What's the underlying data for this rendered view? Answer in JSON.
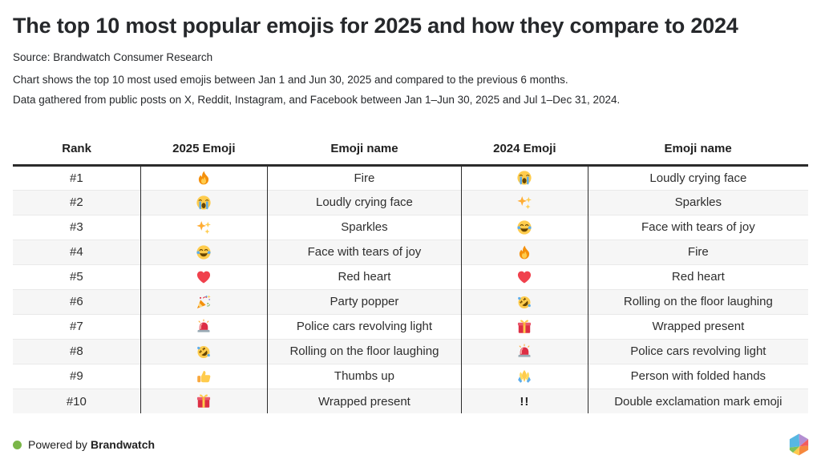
{
  "header": {
    "title": "The top 10 most popular emojis for 2025 and how they compare to 2024",
    "source": "Source: Brandwatch Consumer Research",
    "description_line1": "Chart shows the top 10 most used emojis between Jan 1 and Jun 30, 2025 and compared to the previous 6 months.",
    "description_line2": "Data gathered from public posts on X, Reddit, Instagram, and Facebook between Jan 1–Jun 30, 2025 and Jul 1–Dec 31, 2024."
  },
  "chart_data": {
    "type": "table",
    "title": "The top 10 most popular emojis for 2025 and how they compare to 2024",
    "columns": [
      "Rank",
      "2025 Emoji",
      "Emoji name",
      "2024 Emoji",
      "Emoji name"
    ],
    "rows": [
      {
        "rank": "#1",
        "emoji_2025": "🔥",
        "icon_2025": "fire",
        "name_2025": "Fire",
        "emoji_2024": "😭",
        "icon_2024": "loudly-crying-face",
        "name_2024": "Loudly crying face"
      },
      {
        "rank": "#2",
        "emoji_2025": "😭",
        "icon_2025": "loudly-crying-face",
        "name_2025": "Loudly crying face",
        "emoji_2024": "✨",
        "icon_2024": "sparkles",
        "name_2024": "Sparkles"
      },
      {
        "rank": "#3",
        "emoji_2025": "✨",
        "icon_2025": "sparkles",
        "name_2025": "Sparkles",
        "emoji_2024": "😂",
        "icon_2024": "face-with-tears-of-joy",
        "name_2024": "Face with tears of joy"
      },
      {
        "rank": "#4",
        "emoji_2025": "😂",
        "icon_2025": "face-with-tears-of-joy",
        "name_2025": "Face with tears of joy",
        "emoji_2024": "🔥",
        "icon_2024": "fire",
        "name_2024": "Fire"
      },
      {
        "rank": "#5",
        "emoji_2025": "❤️",
        "icon_2025": "red-heart",
        "name_2025": "Red heart",
        "emoji_2024": "❤️",
        "icon_2024": "red-heart",
        "name_2024": "Red heart"
      },
      {
        "rank": "#6",
        "emoji_2025": "🎉",
        "icon_2025": "party-popper",
        "name_2025": "Party popper",
        "emoji_2024": "🤣",
        "icon_2024": "rolling-on-the-floor-laughing",
        "name_2024": "Rolling on the floor laughing"
      },
      {
        "rank": "#7",
        "emoji_2025": "🚨",
        "icon_2025": "police-light",
        "name_2025": "Police cars revolving light",
        "emoji_2024": "🎁",
        "icon_2024": "wrapped-present",
        "name_2024": "Wrapped present"
      },
      {
        "rank": "#8",
        "emoji_2025": "🤣",
        "icon_2025": "rolling-on-the-floor-laughing",
        "name_2025": "Rolling on the floor laughing",
        "emoji_2024": "🚨",
        "icon_2024": "police-light",
        "name_2024": "Police cars revolving light"
      },
      {
        "rank": "#9",
        "emoji_2025": "👍",
        "icon_2025": "thumbs-up",
        "name_2025": "Thumbs up",
        "emoji_2024": "🙏",
        "icon_2024": "folded-hands",
        "name_2024": "Person with folded hands"
      },
      {
        "rank": "#10",
        "emoji_2025": "🎁",
        "icon_2025": "wrapped-present",
        "name_2025": "Wrapped present",
        "emoji_2024": "!!",
        "icon_2024": "double-exclamation",
        "name_2024": "Double exclamation mark emoji"
      }
    ]
  },
  "footer": {
    "powered_by": "Powered by",
    "brand": "Brandwatch",
    "logo": "infogram-hexagon-logo"
  },
  "colors": {
    "accent_green": "#7ab648",
    "stripe": "#f6f6f6",
    "border_dark": "#2b2b2b",
    "row_divider": "#e9e9e9"
  }
}
